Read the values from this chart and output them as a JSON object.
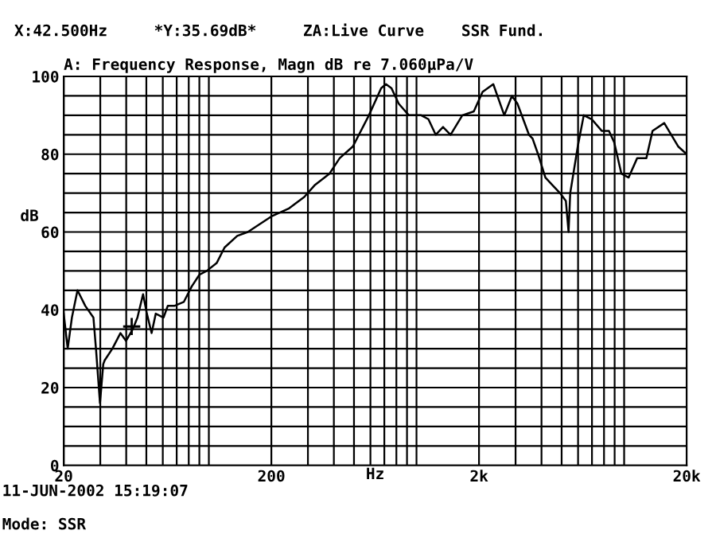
{
  "chart_data": {
    "type": "line",
    "title": "A: Frequency Response, Magn dB re 7.060μPa/V",
    "subtitle": "X:42.500Hz     *Y:35.69dB*     ZA:Live Curve    SSR Fund.",
    "xlabel": "Hz",
    "ylabel": "dB",
    "annotations": [
      "11-JUN-2002 15:19:07",
      "Mode: SSR"
    ],
    "log": "x",
    "grid": true,
    "legend": false,
    "xlim": [
      20,
      20000
    ],
    "xticks": [
      20,
      {
        "value": 30,
        "label": null
      },
      {
        "value": 40,
        "label": null
      },
      {
        "value": 50,
        "label": null
      },
      {
        "value": 60,
        "label": null
      },
      {
        "value": 70,
        "label": null
      },
      {
        "value": 80,
        "label": null
      },
      {
        "value": 90,
        "label": null
      },
      {
        "value": 100,
        "label": null
      },
      200,
      {
        "value": 300,
        "label": null
      },
      {
        "value": 400,
        "label": null
      },
      {
        "value": 500,
        "label": null
      },
      {
        "value": 600,
        "label": null
      },
      {
        "value": 700,
        "label": null
      },
      {
        "value": 800,
        "label": null
      },
      {
        "value": 900,
        "label": null
      },
      {
        "value": 1000,
        "label": null
      },
      {
        "value": 2000,
        "label": "2k"
      },
      {
        "value": 3000,
        "label": null
      },
      {
        "value": 4000,
        "label": null
      },
      {
        "value": 5000,
        "label": null
      },
      {
        "value": 6000,
        "label": null
      },
      {
        "value": 7000,
        "label": null
      },
      {
        "value": 8000,
        "label": null
      },
      {
        "value": 9000,
        "label": null
      },
      {
        "value": 10000,
        "label": null
      },
      {
        "value": 20000,
        "label": "20k"
      }
    ],
    "ylim": [
      0,
      100
    ],
    "yticks": [
      0,
      {
        "value": 5,
        "label": null
      },
      {
        "value": 10,
        "label": null
      },
      {
        "value": 15,
        "label": null
      },
      20,
      {
        "value": 25,
        "label": null
      },
      {
        "value": 30,
        "label": null
      },
      {
        "value": 35,
        "label": null
      },
      40,
      {
        "value": 45,
        "label": null
      },
      {
        "value": 50,
        "label": null
      },
      {
        "value": 55,
        "label": null
      },
      60,
      {
        "value": 65,
        "label": null
      },
      {
        "value": 70,
        "label": null
      },
      {
        "value": 75,
        "label": null
      },
      80,
      {
        "value": 85,
        "label": null
      },
      {
        "value": 90,
        "label": null
      },
      {
        "value": 95,
        "label": null
      },
      100
    ],
    "series": [
      {
        "color": "#000000",
        "marker": "none",
        "line_style": "solid",
        "x": [
          20,
          20.9,
          21.9,
          23.3,
          25.4,
          27.8,
          28.6,
          29.9,
          31,
          31.5,
          34.3,
          37.5,
          39.9,
          43,
          45.3,
          48.2,
          50.3,
          53,
          55.5,
          60.5,
          63.4,
          68.2,
          75.7,
          82.7,
          90,
          97.7,
          109,
          119,
          137,
          154,
          200,
          242,
          288,
          323,
          381,
          427,
          494,
          590,
          676,
          713,
          757,
          821,
          919,
          1053,
          1141,
          1237,
          1342,
          1459,
          1663,
          1888,
          2080,
          2343,
          2647,
          2881,
          3063,
          3480,
          3623,
          3850,
          4177,
          4525,
          4910,
          5240,
          5400,
          5500,
          5980,
          6390,
          6980,
          7800,
          8450,
          8960,
          9700,
          10510,
          11560,
          12800,
          13700,
          15600,
          18200,
          20000
        ],
        "values": [
          39,
          30,
          38,
          45,
          41,
          38,
          30,
          16,
          26,
          27,
          30,
          34,
          32,
          35,
          38,
          44,
          39,
          34,
          39,
          38,
          41,
          41,
          42,
          46,
          49,
          50,
          52,
          56,
          59,
          60,
          64,
          66,
          69,
          72,
          75,
          79,
          82,
          90,
          97,
          98,
          97,
          93,
          90,
          90,
          89,
          85,
          87,
          85,
          90,
          91,
          96,
          98,
          90,
          95,
          93,
          85,
          84,
          80,
          74,
          72,
          70,
          68,
          60,
          70,
          82,
          90,
          89,
          86,
          86,
          83,
          75,
          74,
          79,
          79,
          86,
          88,
          82,
          80
        ]
      },
      {
        "type": "scatter",
        "color": "#000000",
        "marker": "cross",
        "x": [
          42.5
        ],
        "values": [
          35.7
        ]
      }
    ]
  }
}
